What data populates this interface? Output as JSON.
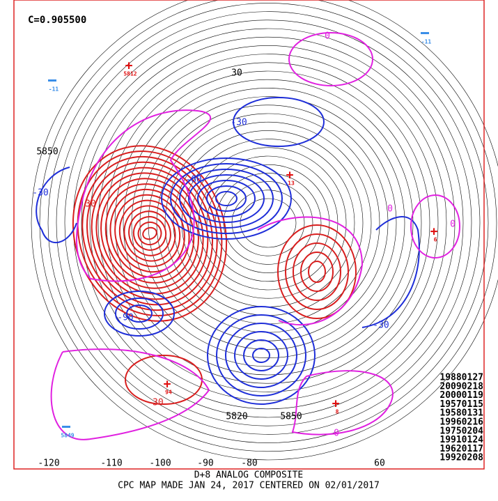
{
  "header": {
    "correlation": "C=0.905500"
  },
  "footer": {
    "line1": "D+8 ANALOG COMPOSITE",
    "line2": "CPC MAP MADE JAN 24, 2017 CENTERED ON 02/01/2017"
  },
  "analog_dates": [
    "19880127",
    "20090218",
    "20000119",
    "19570115",
    "19580131",
    "19960216",
    "19750204",
    "19910124",
    "19620117",
    "19920208"
  ],
  "longitude_labels": [
    "-120",
    "-110",
    "-100",
    "-90",
    "-80",
    "60"
  ],
  "contour_labels": [
    "0",
    "30",
    "-30",
    "-30",
    "-60",
    "-90",
    "-30",
    "-30",
    "0",
    "5850",
    "5850",
    "5820",
    "0",
    "0",
    "30"
  ],
  "positive_centers": [
    "5812",
    "13",
    "6",
    "8",
    "94"
  ],
  "negative_centers": [
    "-11",
    "-11",
    "5849"
  ]
}
